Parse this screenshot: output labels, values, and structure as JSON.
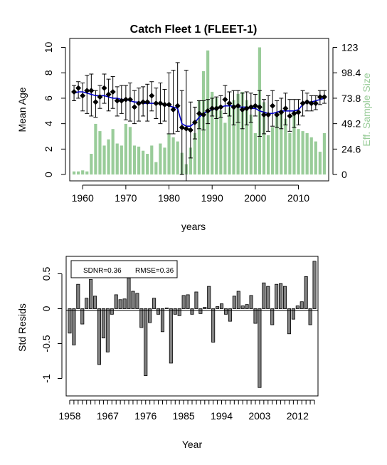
{
  "chart_data": [
    {
      "type": "bar+line",
      "title": "Catch Fleet 1 (FLEET-1)",
      "xlabel": "years",
      "ylabel": "Mean Age",
      "ylabel_right": "Eff. Sample Size",
      "x_ticks": [
        "1960",
        "1970",
        "1980",
        "1990",
        "2000",
        "2010"
      ],
      "y_ticks": [
        "0",
        "2",
        "4",
        "6",
        "8",
        "10"
      ],
      "y_right_ticks": [
        "0",
        "24.6",
        "49.2",
        "73.8",
        "98.4",
        "123"
      ],
      "xlim": [
        1957,
        2017
      ],
      "ylim": [
        -0.5,
        10.7
      ],
      "ylim_right": [
        0,
        123
      ],
      "years": [
        1958,
        1959,
        1960,
        1961,
        1962,
        1963,
        1964,
        1965,
        1966,
        1967,
        1968,
        1969,
        1970,
        1971,
        1972,
        1973,
        1974,
        1975,
        1976,
        1977,
        1978,
        1979,
        1980,
        1981,
        1982,
        1983,
        1984,
        1985,
        1986,
        1987,
        1988,
        1989,
        1990,
        1991,
        1992,
        1993,
        1994,
        1995,
        1996,
        1997,
        1998,
        1999,
        2000,
        2001,
        2002,
        2003,
        2004,
        2005,
        2006,
        2007,
        2008,
        2009,
        2010,
        2011,
        2012,
        2013,
        2014,
        2015,
        2016
      ],
      "series": [
        {
          "name": "Eff. Sample Size",
          "kind": "bar",
          "color": "#99cc99",
          "values": [
            3,
            3,
            4,
            3,
            20,
            49,
            42,
            28,
            34,
            44,
            30,
            28,
            49,
            46,
            28,
            27,
            23,
            20,
            28,
            12,
            30,
            26,
            39,
            36,
            32,
            21,
            10,
            26,
            40,
            72,
            100,
            120,
            80,
            74,
            62,
            50,
            65,
            72,
            78,
            80,
            72,
            58,
            40,
            123,
            70,
            38,
            46,
            57,
            62,
            54,
            40,
            62,
            44,
            42,
            40,
            36,
            32,
            22,
            40
          ]
        },
        {
          "name": "",
          "kind": "points",
          "color": "#000000",
          "values": [
            6.5,
            6.8,
            6.2,
            6.6,
            6.6,
            5.7,
            6.1,
            6.8,
            6.3,
            6.5,
            5.8,
            5.8,
            5.9,
            5.9,
            5.3,
            5.6,
            5.7,
            5.7,
            6.2,
            5.6,
            5.6,
            5.5,
            5.5,
            5.1,
            5.4,
            3.7,
            3.6,
            3.5,
            4.1,
            4.8,
            4.7,
            5.0,
            5.2,
            5.2,
            5.3,
            5.9,
            5.6,
            5.3,
            5.4,
            5.1,
            5.2,
            5.3,
            5.4,
            5.3,
            4.7,
            4.7,
            5.4,
            4.7,
            4.9,
            5.2,
            4.6,
            4.8,
            4.9,
            5.6,
            5.7,
            5.6,
            5.6,
            6.1,
            6.1
          ],
          "err_low": [
            5.8,
            6.0,
            5.0,
            4.8,
            4.6,
            4.5,
            5.2,
            5.6,
            5.0,
            5.2,
            4.6,
            4.8,
            4.3,
            4.2,
            4.0,
            4.2,
            4.6,
            4.2,
            5.0,
            4.4,
            4.0,
            4.2,
            3.2,
            3.2,
            3.4,
            0.0,
            -0.5,
            1.3,
            2.8,
            3.6,
            3.5,
            4.0,
            4.6,
            4.4,
            4.5,
            4.8,
            4.6,
            3.9,
            4.1,
            3.6,
            3.9,
            4.1,
            4.6,
            3.0,
            3.2,
            3.4,
            3.8,
            3.7,
            3.6,
            3.9,
            3.4,
            3.7,
            3.9,
            4.6,
            5.0,
            5.0,
            5.1,
            5.5,
            5.6
          ],
          "err_high": [
            7.0,
            7.3,
            7.2,
            7.8,
            7.9,
            6.6,
            7.0,
            7.9,
            7.5,
            7.7,
            6.9,
            7.0,
            7.0,
            7.2,
            6.6,
            6.8,
            6.9,
            7.1,
            7.3,
            6.8,
            7.2,
            6.7,
            8.0,
            8.2,
            8.8,
            6.6,
            8.2,
            5.7,
            5.3,
            5.8,
            5.8,
            5.9,
            6.0,
            6.1,
            6.2,
            7.0,
            6.5,
            6.6,
            6.6,
            6.4,
            6.5,
            6.4,
            6.3,
            6.6,
            5.9,
            6.2,
            6.6,
            5.8,
            6.0,
            6.4,
            5.9,
            5.9,
            5.9,
            6.6,
            6.4,
            6.2,
            6.2,
            6.6,
            6.6
          ]
        },
        {
          "name": "",
          "kind": "line",
          "color": "#0000cc",
          "values": [
            6.4,
            6.5,
            6.5,
            6.4,
            6.3,
            6.2,
            6.2,
            6.2,
            6.1,
            6.0,
            6.0,
            5.9,
            5.9,
            5.8,
            5.7,
            5.7,
            5.6,
            5.6,
            5.6,
            5.6,
            5.6,
            5.5,
            5.4,
            5.3,
            5.2,
            4.0,
            3.8,
            3.8,
            4.1,
            4.5,
            4.8,
            5.0,
            5.1,
            5.2,
            5.3,
            5.4,
            5.4,
            5.4,
            5.3,
            5.3,
            5.3,
            5.2,
            5.2,
            5.0,
            4.9,
            4.8,
            4.8,
            4.9,
            5.0,
            5.0,
            5.0,
            5.0,
            5.1,
            5.5,
            5.7,
            5.7,
            5.8,
            5.9,
            6.0
          ]
        }
      ]
    },
    {
      "type": "bar",
      "xlabel": "Year",
      "ylabel": "Std Resids",
      "annotations": {
        "sdnr": "SDNR=0.36",
        "rmse": "RMSE=0.36"
      },
      "x_ticks": [
        "1958",
        "1967",
        "1976",
        "1985",
        "1994",
        "2003",
        "2012"
      ],
      "y_ticks": [
        "-1",
        "-0.5",
        "0",
        "0.5"
      ],
      "ylim": [
        -1.25,
        0.75
      ],
      "bar_color": "#808080",
      "years": [
        1958,
        1959,
        1960,
        1961,
        1962,
        1963,
        1964,
        1965,
        1966,
        1967,
        1968,
        1969,
        1970,
        1971,
        1972,
        1973,
        1974,
        1975,
        1976,
        1977,
        1978,
        1979,
        1980,
        1981,
        1982,
        1983,
        1984,
        1985,
        1986,
        1987,
        1988,
        1989,
        1990,
        1991,
        1992,
        1993,
        1994,
        1995,
        1996,
        1997,
        1998,
        1999,
        2000,
        2001,
        2002,
        2003,
        2004,
        2005,
        2006,
        2007,
        2008,
        2009,
        2010,
        2011,
        2012,
        2013,
        2014,
        2015,
        2016
      ],
      "values": [
        -0.35,
        -0.52,
        0.35,
        -0.22,
        0.15,
        0.42,
        0.18,
        -0.8,
        -0.42,
        -0.62,
        -0.08,
        0.2,
        0.13,
        0.14,
        0.44,
        0.25,
        0.22,
        -0.27,
        -0.96,
        -0.2,
        0.15,
        -0.08,
        -0.33,
        0.01,
        -0.78,
        -0.08,
        -0.1,
        0.19,
        0.2,
        -0.08,
        0.24,
        -0.07,
        0.02,
        0.32,
        -0.48,
        0.03,
        0.07,
        -0.08,
        -0.18,
        0.18,
        0.25,
        0.04,
        0.06,
        0.19,
        -0.21,
        -1.13,
        0.37,
        0.32,
        -0.23,
        0.35,
        0.36,
        0.32,
        -0.36,
        -0.15,
        0.04,
        0.1,
        0.46,
        -0.23,
        0.68
      ]
    }
  ]
}
